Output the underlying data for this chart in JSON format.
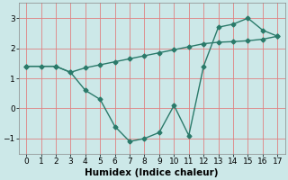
{
  "line1_x": [
    0,
    1,
    2,
    3,
    4,
    5,
    6,
    7,
    8,
    9,
    10,
    11,
    12,
    13,
    14,
    15,
    16,
    17
  ],
  "line1_y": [
    1.4,
    1.4,
    1.4,
    1.2,
    1.35,
    1.45,
    1.55,
    1.65,
    1.75,
    1.85,
    1.95,
    2.05,
    2.15,
    2.2,
    2.22,
    2.25,
    2.3,
    2.4
  ],
  "line2_x": [
    0,
    2,
    3,
    4,
    5,
    6,
    7,
    8,
    9,
    10,
    11,
    12,
    13,
    14,
    15,
    16,
    17
  ],
  "line2_y": [
    1.4,
    1.4,
    1.2,
    0.6,
    0.3,
    -0.6,
    -1.1,
    -1.0,
    -0.8,
    0.1,
    -0.9,
    1.4,
    2.7,
    2.8,
    3.0,
    2.6,
    2.4
  ],
  "line_color": "#2a7a6a",
  "bg_color": "#cce8e8",
  "plot_bg_color": "#cce8e8",
  "grid_color": "#e08080",
  "xlabel": "Humidex (Indice chaleur)",
  "xlim": [
    -0.5,
    17.5
  ],
  "ylim": [
    -1.5,
    3.5
  ],
  "yticks": [
    -1,
    0,
    1,
    2,
    3
  ],
  "xticks": [
    0,
    1,
    2,
    3,
    4,
    5,
    6,
    7,
    8,
    9,
    10,
    11,
    12,
    13,
    14,
    15,
    16,
    17
  ],
  "marker": "D",
  "markersize": 2.5,
  "linewidth": 1.0,
  "tick_fontsize": 6.5,
  "xlabel_fontsize": 7.5
}
